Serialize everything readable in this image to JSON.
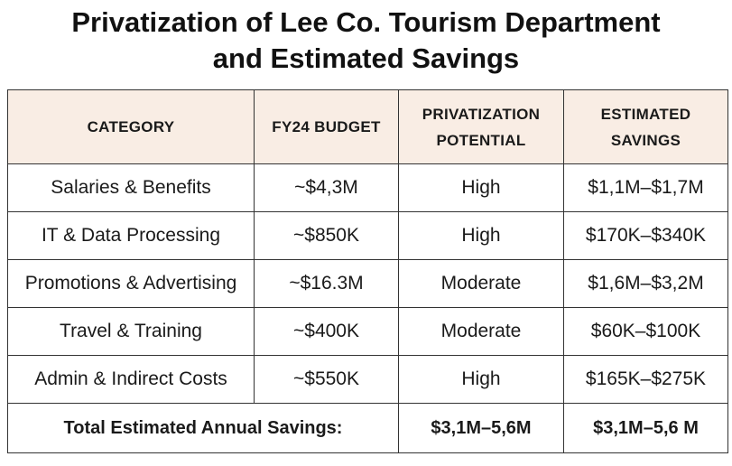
{
  "title": {
    "line1": "Privatization of Lee Co. Tourism Department",
    "line2": "and Estimated Savings"
  },
  "table": {
    "headers": [
      {
        "line1": "CATEGORY",
        "line2": ""
      },
      {
        "line1": "FY24 BUDGET",
        "line2": ""
      },
      {
        "line1": "PRIVATIZATION",
        "line2": "POTENTIAL"
      },
      {
        "line1": "ESTIMATED",
        "line2": "SAVINGS"
      }
    ],
    "rows": [
      {
        "category": "Salaries & Benefits",
        "budget": "~$4,3M",
        "potential": "High",
        "savings": "$1,1M–$1,7M"
      },
      {
        "category": "IT & Data Processing",
        "budget": "~$850K",
        "potential": "High",
        "savings": "$170K–$340K"
      },
      {
        "category": "Promotions & Advertising",
        "budget": "~$16.3M",
        "potential": "Moderate",
        "savings": "$1,6M–$3,2M"
      },
      {
        "category": "Travel & Training",
        "budget": "~$400K",
        "potential": "Moderate",
        "savings": "$60K–$100K"
      },
      {
        "category": "Admin & Indirect Costs",
        "budget": "~$550K",
        "potential": "High",
        "savings": "$165K–$275K"
      }
    ],
    "total": {
      "label": "Total Estimated Annual Savings:",
      "value1": "$3,1M–5,6M",
      "value2": "$3,1M–5,6 M"
    }
  },
  "colors": {
    "header_background": "#f9ede4",
    "border": "#333333",
    "text": "#1a1a1a"
  }
}
